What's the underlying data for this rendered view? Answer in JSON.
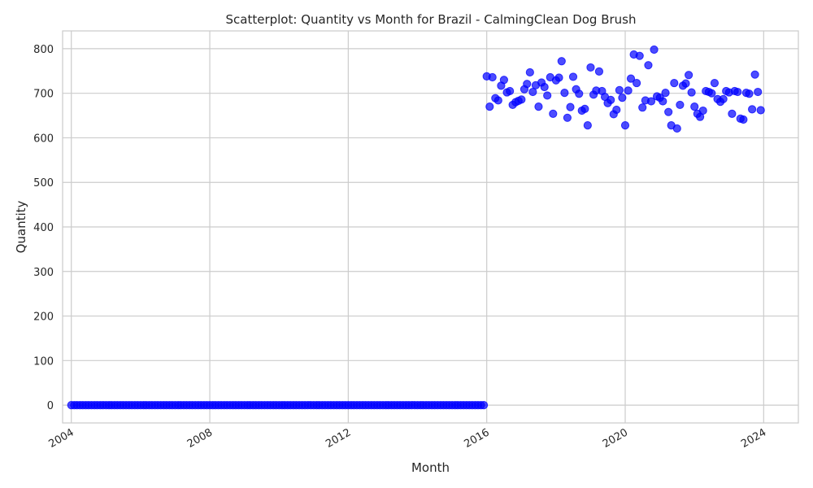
{
  "chart_data": {
    "type": "scatter",
    "title": "Scatterplot: Quantity vs Month for Brazil - CalmingClean Dog Brush",
    "xlabel": "Month",
    "ylabel": "Quantity",
    "x_range": [
      "2003-10-01",
      "2025-01-01"
    ],
    "ylim": [
      -40,
      840
    ],
    "x_ticks": [
      "2004",
      "2008",
      "2012",
      "2016",
      "2020",
      "2024"
    ],
    "y_ticks": [
      0,
      100,
      200,
      300,
      400,
      500,
      600,
      700,
      800
    ],
    "grid": true,
    "legend": "none",
    "marker_color": "#0000ff",
    "series": [
      {
        "zero_period": {
          "start": "2004-01",
          "end": "2015-12",
          "value": 0
        },
        "points": [
          [
            "2016-01",
            738
          ],
          [
            "2016-02",
            670
          ],
          [
            "2016-03",
            736
          ],
          [
            "2016-04",
            689
          ],
          [
            "2016-05",
            684
          ],
          [
            "2016-06",
            717
          ],
          [
            "2016-07",
            730
          ],
          [
            "2016-08",
            702
          ],
          [
            "2016-09",
            705
          ],
          [
            "2016-10",
            674
          ],
          [
            "2016-11",
            680
          ],
          [
            "2016-12",
            683
          ],
          [
            "2017-01",
            686
          ],
          [
            "2017-02",
            709
          ],
          [
            "2017-03",
            721
          ],
          [
            "2017-04",
            747
          ],
          [
            "2017-05",
            703
          ],
          [
            "2017-06",
            718
          ],
          [
            "2017-07",
            670
          ],
          [
            "2017-08",
            724
          ],
          [
            "2017-09",
            714
          ],
          [
            "2017-10",
            695
          ],
          [
            "2017-11",
            736
          ],
          [
            "2017-12",
            654
          ],
          [
            "2018-01",
            729
          ],
          [
            "2018-02",
            735
          ],
          [
            "2018-03",
            772
          ],
          [
            "2018-04",
            701
          ],
          [
            "2018-05",
            645
          ],
          [
            "2018-06",
            669
          ],
          [
            "2018-07",
            737
          ],
          [
            "2018-08",
            709
          ],
          [
            "2018-09",
            699
          ],
          [
            "2018-10",
            661
          ],
          [
            "2018-11",
            665
          ],
          [
            "2018-12",
            628
          ],
          [
            "2019-01",
            758
          ],
          [
            "2019-02",
            697
          ],
          [
            "2019-03",
            706
          ],
          [
            "2019-04",
            749
          ],
          [
            "2019-05",
            705
          ],
          [
            "2019-06",
            692
          ],
          [
            "2019-07",
            678
          ],
          [
            "2019-08",
            685
          ],
          [
            "2019-09",
            653
          ],
          [
            "2019-10",
            663
          ],
          [
            "2019-11",
            707
          ],
          [
            "2019-12",
            690
          ],
          [
            "2020-01",
            628
          ],
          [
            "2020-02",
            706
          ],
          [
            "2020-03",
            733
          ],
          [
            "2020-04",
            787
          ],
          [
            "2020-05",
            723
          ],
          [
            "2020-06",
            784
          ],
          [
            "2020-07",
            668
          ],
          [
            "2020-08",
            684
          ],
          [
            "2020-09",
            763
          ],
          [
            "2020-10",
            682
          ],
          [
            "2020-11",
            798
          ],
          [
            "2020-12",
            693
          ],
          [
            "2021-01",
            690
          ],
          [
            "2021-02",
            682
          ],
          [
            "2021-03",
            701
          ],
          [
            "2021-04",
            658
          ],
          [
            "2021-05",
            628
          ],
          [
            "2021-06",
            723
          ],
          [
            "2021-07",
            621
          ],
          [
            "2021-08",
            674
          ],
          [
            "2021-09",
            717
          ],
          [
            "2021-10",
            722
          ],
          [
            "2021-11",
            741
          ],
          [
            "2021-12",
            702
          ],
          [
            "2022-01",
            670
          ],
          [
            "2022-02",
            654
          ],
          [
            "2022-03",
            647
          ],
          [
            "2022-04",
            661
          ],
          [
            "2022-05",
            705
          ],
          [
            "2022-06",
            703
          ],
          [
            "2022-07",
            700
          ],
          [
            "2022-08",
            723
          ],
          [
            "2022-09",
            687
          ],
          [
            "2022-10",
            681
          ],
          [
            "2022-11",
            687
          ],
          [
            "2022-12",
            705
          ],
          [
            "2023-01",
            702
          ],
          [
            "2023-02",
            654
          ],
          [
            "2023-03",
            705
          ],
          [
            "2023-04",
            703
          ],
          [
            "2023-05",
            643
          ],
          [
            "2023-06",
            641
          ],
          [
            "2023-07",
            701
          ],
          [
            "2023-08",
            699
          ],
          [
            "2023-09",
            664
          ],
          [
            "2023-10",
            742
          ],
          [
            "2023-11",
            703
          ],
          [
            "2023-12",
            662
          ]
        ]
      }
    ]
  }
}
